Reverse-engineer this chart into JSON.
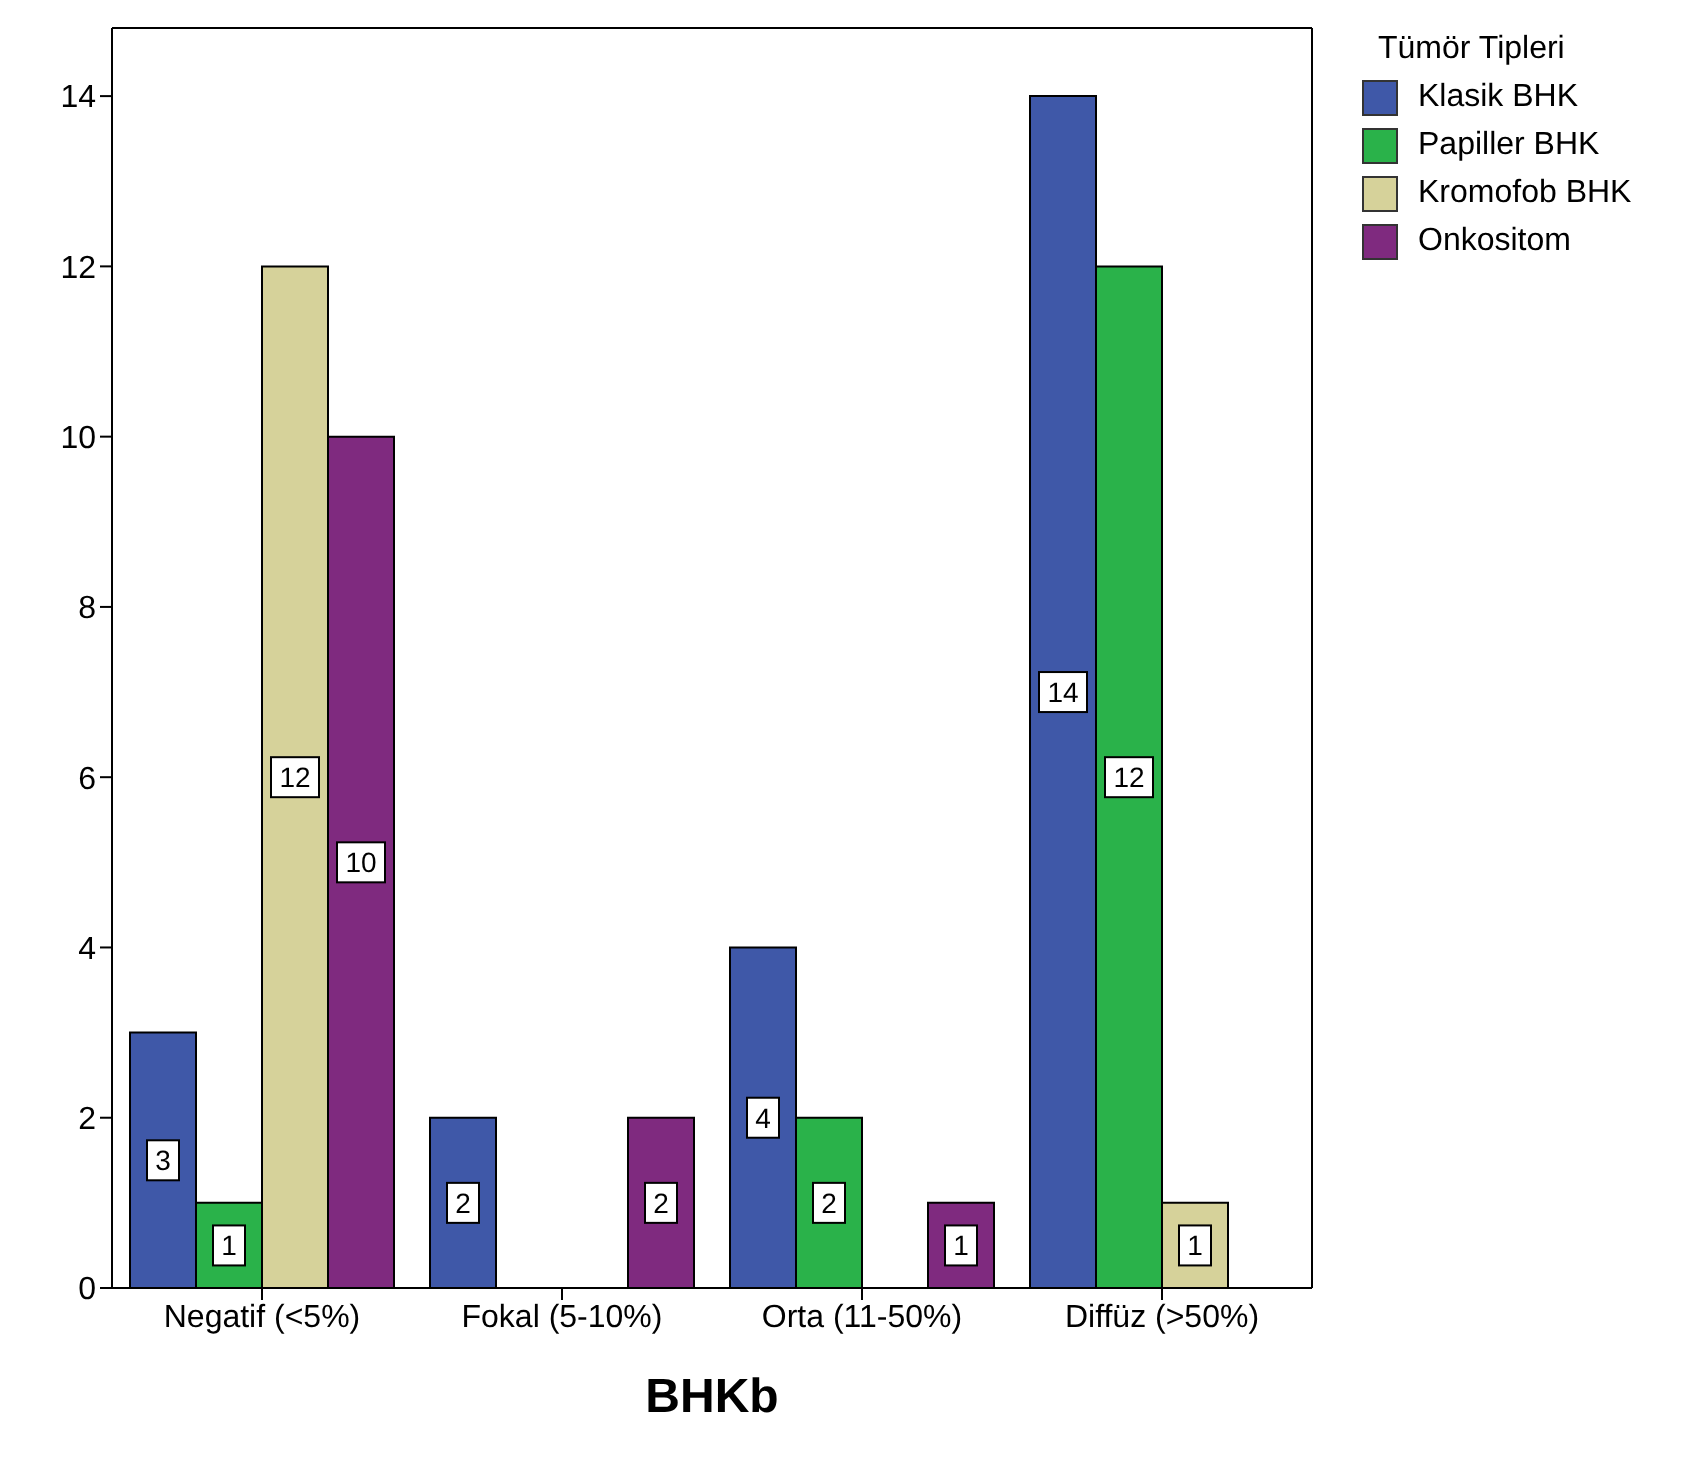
{
  "chart_data": {
    "type": "bar",
    "xlabel": "BHKb",
    "legend_title": "Tümör Tipleri",
    "categories": [
      "Negatif (<5%)",
      "Fokal (5-10%)",
      "Orta (11-50%)",
      "Diffüz (>50%)"
    ],
    "series": [
      {
        "name": "Klasik BHK",
        "color": "#3f58a8",
        "values": [
          3,
          2,
          4,
          14
        ]
      },
      {
        "name": "Papiller BHK",
        "color": "#2ab24a",
        "values": [
          1,
          null,
          2,
          12
        ]
      },
      {
        "name": "Kromofob BHK",
        "color": "#d6d29a",
        "values": [
          12,
          null,
          null,
          1
        ]
      },
      {
        "name": "Onkositom",
        "color": "#7f2a7f",
        "values": [
          10,
          2,
          1,
          null
        ]
      }
    ],
    "ylim": [
      0,
      14.8
    ],
    "yticks": [
      0,
      2,
      4,
      6,
      8,
      10,
      12,
      14
    ],
    "grid": false,
    "legend": "top right",
    "data_labels": true
  }
}
